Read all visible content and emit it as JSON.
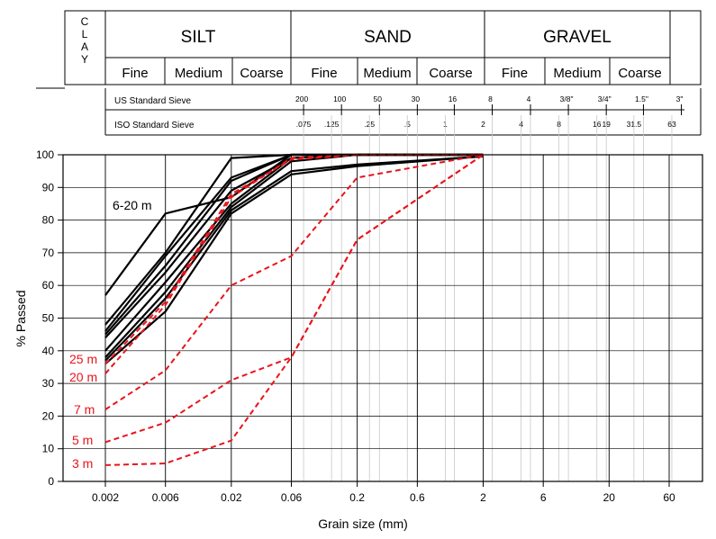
{
  "header": {
    "clay_label": [
      "C",
      "L",
      "A",
      "Y"
    ],
    "groups": [
      {
        "name": "SILT",
        "subs": [
          "Fine",
          "Medium",
          "Coarse"
        ]
      },
      {
        "name": "SAND",
        "subs": [
          "Fine",
          "Medium",
          "Coarse"
        ]
      },
      {
        "name": "GRAVEL",
        "subs": [
          "Fine",
          "Medium",
          "Coarse"
        ]
      }
    ],
    "us_sieve_label": "US Standard Sieve",
    "us_sieve_ticks": [
      {
        "label": "200",
        "mm": 0.075
      },
      {
        "label": "100",
        "mm": 0.15
      },
      {
        "label": "50",
        "mm": 0.3
      },
      {
        "label": "30",
        "mm": 0.6
      },
      {
        "label": "16",
        "mm": 1.18
      },
      {
        "label": "8",
        "mm": 2.36
      },
      {
        "label": "4",
        "mm": 4.75
      },
      {
        "label": "3/8\"",
        "mm": 9.5
      },
      {
        "label": "3/4\"",
        "mm": 19
      },
      {
        "label": "1.5\"",
        "mm": 37.5
      },
      {
        "label": "3\"",
        "mm": 75
      }
    ],
    "iso_sieve_label": "ISO Standard Sieve",
    "iso_sieve_ticks": [
      {
        "label": ".075",
        "mm": 0.075
      },
      {
        "label": ".125",
        "mm": 0.125
      },
      {
        "label": ".25",
        "mm": 0.25
      },
      {
        "label": ".5",
        "mm": 0.5
      },
      {
        "label": "1",
        "mm": 1
      },
      {
        "label": "2",
        "mm": 2
      },
      {
        "label": "4",
        "mm": 4
      },
      {
        "label": "8",
        "mm": 8
      },
      {
        "label": "16",
        "mm": 16
      },
      {
        "label": "19",
        "mm": 19
      },
      {
        "label": "31.5",
        "mm": 31.5
      },
      {
        "label": "63",
        "mm": 63
      }
    ]
  },
  "chart_data": {
    "type": "line",
    "xlabel": "Grain size (mm)",
    "ylabel": "% Passed",
    "xscale": "log",
    "xlim": [
      0.002,
      60
    ],
    "ylim": [
      0,
      100
    ],
    "yticks": [
      0,
      10,
      20,
      30,
      40,
      50,
      60,
      70,
      80,
      90,
      100
    ],
    "xticks": [
      {
        "label": "0.002",
        "value": 0.002
      },
      {
        "label": "0.006",
        "value": 0.006
      },
      {
        "label": "0.02",
        "value": 0.02
      },
      {
        "label": "0.06",
        "value": 0.06
      },
      {
        "label": "0.2",
        "value": 0.2
      },
      {
        "label": "0.6",
        "value": 0.6
      },
      {
        "label": "2",
        "value": 2
      },
      {
        "label": "6",
        "value": 6
      },
      {
        "label": "20",
        "value": 20
      },
      {
        "label": "60",
        "value": 60
      }
    ],
    "major_gridlines": [
      0.002,
      0.006,
      0.02,
      0.06,
      0.2,
      0.6,
      2,
      6,
      20,
      60
    ],
    "minor_gridlines": [
      0.075,
      0.125,
      0.15,
      0.25,
      0.3,
      0.5,
      0.6,
      1,
      1.18,
      2.36,
      4,
      4.75,
      8,
      9.5,
      16,
      19,
      31.5,
      37.5,
      63
    ],
    "x": [
      0.002,
      0.006,
      0.02,
      0.06,
      0.2,
      2
    ],
    "colors": {
      "black_series": "#000000",
      "red_series": "#e8141b"
    },
    "series": [
      {
        "group": "black",
        "values": [
          57,
          82,
          87,
          null,
          null,
          100
        ],
        "xs": [
          0.002,
          0.006,
          0.02,
          0.06,
          0.2,
          2
        ]
      },
      {
        "group": "black",
        "values": [
          48,
          70,
          99,
          100,
          100,
          100
        ]
      },
      {
        "group": "black",
        "values": [
          46,
          69,
          93,
          100,
          100,
          100
        ]
      },
      {
        "group": "black",
        "values": [
          45,
          66,
          92,
          100,
          100,
          100
        ]
      },
      {
        "group": "black",
        "values": [
          44,
          64,
          89,
          99,
          100,
          100
        ]
      },
      {
        "group": "black",
        "values": [
          40,
          61,
          85,
          99,
          100,
          100
        ]
      },
      {
        "group": "black",
        "values": [
          38,
          58,
          84,
          98,
          100,
          100
        ]
      },
      {
        "group": "black",
        "values": [
          37,
          56,
          83,
          95,
          97,
          99.5
        ]
      },
      {
        "group": "black",
        "values": [
          36,
          52,
          82,
          94,
          96.5,
          99.5
        ]
      },
      {
        "group": "red",
        "name": "25 m",
        "values": [
          36,
          55,
          88,
          98.5,
          100,
          100
        ]
      },
      {
        "group": "red",
        "name": "20 m",
        "values": [
          33,
          54,
          87,
          99,
          100,
          100
        ]
      },
      {
        "group": "red",
        "name": "7 m",
        "values": [
          22,
          34,
          60,
          69,
          93,
          100
        ]
      },
      {
        "group": "red",
        "name": "5 m",
        "values": [
          12,
          18,
          31,
          38,
          74,
          100
        ]
      },
      {
        "group": "red",
        "name": "3 m",
        "values": [
          5,
          5.5,
          12.5,
          38,
          74,
          100
        ]
      }
    ],
    "annotations": [
      {
        "text": "6-20 m",
        "color": "#000000",
        "x": 0.0035,
        "y": 84
      },
      {
        "text": "25 m",
        "color": "#e8141b"
      },
      {
        "text": "20 m",
        "color": "#e8141b"
      },
      {
        "text": "7 m",
        "color": "#e8141b"
      },
      {
        "text": "5 m",
        "color": "#e8141b"
      },
      {
        "text": "3 m",
        "color": "#e8141b"
      }
    ]
  }
}
